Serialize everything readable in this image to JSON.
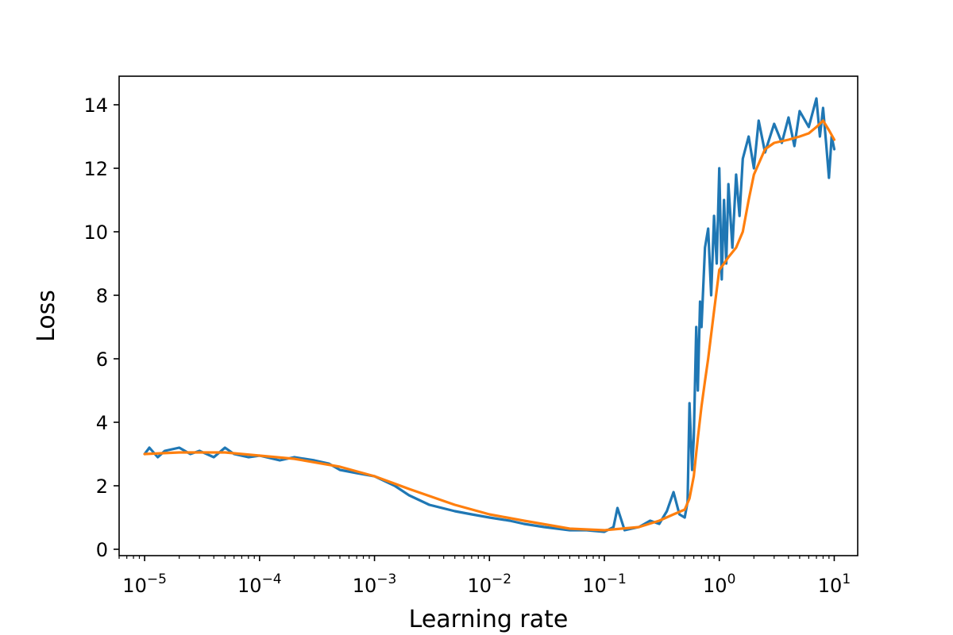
{
  "chart_data": {
    "type": "line",
    "title": "",
    "xlabel": "Learning rate",
    "ylabel": "Loss",
    "xscale": "log",
    "xlim": [
      6e-06,
      16
    ],
    "ylim": [
      -0.2,
      14.9
    ],
    "grid": false,
    "legend": "none",
    "x_ticks": [
      {
        "value": 1e-05,
        "base": "10",
        "exp": "−5"
      },
      {
        "value": 0.0001,
        "base": "10",
        "exp": "−4"
      },
      {
        "value": 0.001,
        "base": "10",
        "exp": "−3"
      },
      {
        "value": 0.01,
        "base": "10",
        "exp": "−2"
      },
      {
        "value": 0.1,
        "base": "10",
        "exp": "−1"
      },
      {
        "value": 1,
        "base": "10",
        "exp": "0"
      },
      {
        "value": 10,
        "base": "10",
        "exp": "1"
      }
    ],
    "y_ticks": [
      0,
      2,
      4,
      6,
      8,
      10,
      12,
      14
    ],
    "series": [
      {
        "color": "#1f77b4",
        "x": [
          1e-05,
          1.1e-05,
          1.3e-05,
          1.5e-05,
          2e-05,
          2.5e-05,
          3e-05,
          4e-05,
          5e-05,
          6e-05,
          8e-05,
          0.0001,
          0.00015,
          0.0002,
          0.0003,
          0.0004,
          0.0005,
          0.0007,
          0.001,
          0.0015,
          0.002,
          0.003,
          0.005,
          0.007,
          0.01,
          0.015,
          0.02,
          0.03,
          0.05,
          0.07,
          0.1,
          0.12,
          0.13,
          0.15,
          0.2,
          0.25,
          0.3,
          0.35,
          0.4,
          0.45,
          0.5,
          0.53,
          0.55,
          0.58,
          0.6,
          0.63,
          0.65,
          0.68,
          0.7,
          0.75,
          0.8,
          0.85,
          0.9,
          0.95,
          1.0,
          1.05,
          1.1,
          1.15,
          1.2,
          1.3,
          1.4,
          1.5,
          1.6,
          1.8,
          2.0,
          2.2,
          2.5,
          3.0,
          3.5,
          4.0,
          4.5,
          5.0,
          6.0,
          7.0,
          7.5,
          8.0,
          8.5,
          9.0,
          9.5,
          10.0
        ],
        "values": [
          3.0,
          3.2,
          2.9,
          3.1,
          3.2,
          3.0,
          3.1,
          2.9,
          3.2,
          3.0,
          2.9,
          2.95,
          2.8,
          2.9,
          2.8,
          2.7,
          2.5,
          2.4,
          2.3,
          2.0,
          1.7,
          1.4,
          1.2,
          1.1,
          1.0,
          0.9,
          0.8,
          0.7,
          0.6,
          0.6,
          0.55,
          0.7,
          1.3,
          0.6,
          0.7,
          0.9,
          0.8,
          1.2,
          1.8,
          1.1,
          1.0,
          1.5,
          4.6,
          2.5,
          3.5,
          7.0,
          5.0,
          7.8,
          7.0,
          9.5,
          10.1,
          8.0,
          10.5,
          9.0,
          12.0,
          8.5,
          11.0,
          9.0,
          11.5,
          9.5,
          11.8,
          10.5,
          12.3,
          13.0,
          12.0,
          13.5,
          12.5,
          13.4,
          12.8,
          13.6,
          12.7,
          13.8,
          13.3,
          14.2,
          13.0,
          13.9,
          12.8,
          11.7,
          13.0,
          12.6
        ]
      },
      {
        "color": "#ff7f0e",
        "x": [
          1e-05,
          2e-05,
          5e-05,
          0.0001,
          0.0002,
          0.0005,
          0.001,
          0.002,
          0.005,
          0.01,
          0.02,
          0.05,
          0.1,
          0.2,
          0.3,
          0.4,
          0.5,
          0.55,
          0.6,
          0.65,
          0.7,
          0.75,
          0.8,
          0.9,
          1.0,
          1.1,
          1.2,
          1.4,
          1.6,
          1.8,
          2.0,
          2.5,
          3.0,
          4.0,
          5.0,
          6.0,
          7.0,
          8.0,
          9.0,
          10.0
        ],
        "values": [
          3.0,
          3.05,
          3.05,
          2.95,
          2.85,
          2.6,
          2.3,
          1.9,
          1.4,
          1.1,
          0.9,
          0.65,
          0.6,
          0.7,
          0.9,
          1.1,
          1.25,
          1.6,
          2.3,
          3.5,
          4.5,
          5.3,
          6.0,
          7.5,
          8.8,
          9.0,
          9.2,
          9.5,
          10.0,
          11.0,
          11.8,
          12.6,
          12.8,
          12.9,
          13.0,
          13.1,
          13.3,
          13.5,
          13.2,
          12.9
        ]
      }
    ]
  }
}
